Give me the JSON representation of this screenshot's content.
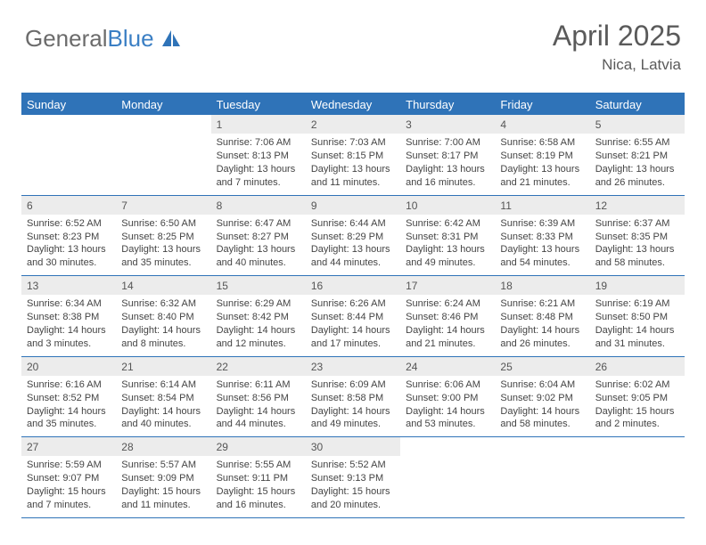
{
  "logo": {
    "gray": "General",
    "blue": "Blue"
  },
  "title": "April 2025",
  "location": "Nica, Latvia",
  "colors": {
    "header_bg": "#2f73b8",
    "header_text": "#ffffff",
    "daynum_bg": "#ececec",
    "text": "#444444",
    "logo_gray": "#6b6b6b",
    "logo_blue": "#3b7fc4"
  },
  "fonts": {
    "title_size": 32,
    "location_size": 17,
    "weekday_size": 13,
    "cell_size": 11
  },
  "weekdays": [
    "Sunday",
    "Monday",
    "Tuesday",
    "Wednesday",
    "Thursday",
    "Friday",
    "Saturday"
  ],
  "weeks": [
    [
      {
        "n": "",
        "sr": "",
        "ss": "",
        "dl": ""
      },
      {
        "n": "",
        "sr": "",
        "ss": "",
        "dl": ""
      },
      {
        "n": "1",
        "sr": "Sunrise: 7:06 AM",
        "ss": "Sunset: 8:13 PM",
        "dl": "Daylight: 13 hours and 7 minutes."
      },
      {
        "n": "2",
        "sr": "Sunrise: 7:03 AM",
        "ss": "Sunset: 8:15 PM",
        "dl": "Daylight: 13 hours and 11 minutes."
      },
      {
        "n": "3",
        "sr": "Sunrise: 7:00 AM",
        "ss": "Sunset: 8:17 PM",
        "dl": "Daylight: 13 hours and 16 minutes."
      },
      {
        "n": "4",
        "sr": "Sunrise: 6:58 AM",
        "ss": "Sunset: 8:19 PM",
        "dl": "Daylight: 13 hours and 21 minutes."
      },
      {
        "n": "5",
        "sr": "Sunrise: 6:55 AM",
        "ss": "Sunset: 8:21 PM",
        "dl": "Daylight: 13 hours and 26 minutes."
      }
    ],
    [
      {
        "n": "6",
        "sr": "Sunrise: 6:52 AM",
        "ss": "Sunset: 8:23 PM",
        "dl": "Daylight: 13 hours and 30 minutes."
      },
      {
        "n": "7",
        "sr": "Sunrise: 6:50 AM",
        "ss": "Sunset: 8:25 PM",
        "dl": "Daylight: 13 hours and 35 minutes."
      },
      {
        "n": "8",
        "sr": "Sunrise: 6:47 AM",
        "ss": "Sunset: 8:27 PM",
        "dl": "Daylight: 13 hours and 40 minutes."
      },
      {
        "n": "9",
        "sr": "Sunrise: 6:44 AM",
        "ss": "Sunset: 8:29 PM",
        "dl": "Daylight: 13 hours and 44 minutes."
      },
      {
        "n": "10",
        "sr": "Sunrise: 6:42 AM",
        "ss": "Sunset: 8:31 PM",
        "dl": "Daylight: 13 hours and 49 minutes."
      },
      {
        "n": "11",
        "sr": "Sunrise: 6:39 AM",
        "ss": "Sunset: 8:33 PM",
        "dl": "Daylight: 13 hours and 54 minutes."
      },
      {
        "n": "12",
        "sr": "Sunrise: 6:37 AM",
        "ss": "Sunset: 8:35 PM",
        "dl": "Daylight: 13 hours and 58 minutes."
      }
    ],
    [
      {
        "n": "13",
        "sr": "Sunrise: 6:34 AM",
        "ss": "Sunset: 8:38 PM",
        "dl": "Daylight: 14 hours and 3 minutes."
      },
      {
        "n": "14",
        "sr": "Sunrise: 6:32 AM",
        "ss": "Sunset: 8:40 PM",
        "dl": "Daylight: 14 hours and 8 minutes."
      },
      {
        "n": "15",
        "sr": "Sunrise: 6:29 AM",
        "ss": "Sunset: 8:42 PM",
        "dl": "Daylight: 14 hours and 12 minutes."
      },
      {
        "n": "16",
        "sr": "Sunrise: 6:26 AM",
        "ss": "Sunset: 8:44 PM",
        "dl": "Daylight: 14 hours and 17 minutes."
      },
      {
        "n": "17",
        "sr": "Sunrise: 6:24 AM",
        "ss": "Sunset: 8:46 PM",
        "dl": "Daylight: 14 hours and 21 minutes."
      },
      {
        "n": "18",
        "sr": "Sunrise: 6:21 AM",
        "ss": "Sunset: 8:48 PM",
        "dl": "Daylight: 14 hours and 26 minutes."
      },
      {
        "n": "19",
        "sr": "Sunrise: 6:19 AM",
        "ss": "Sunset: 8:50 PM",
        "dl": "Daylight: 14 hours and 31 minutes."
      }
    ],
    [
      {
        "n": "20",
        "sr": "Sunrise: 6:16 AM",
        "ss": "Sunset: 8:52 PM",
        "dl": "Daylight: 14 hours and 35 minutes."
      },
      {
        "n": "21",
        "sr": "Sunrise: 6:14 AM",
        "ss": "Sunset: 8:54 PM",
        "dl": "Daylight: 14 hours and 40 minutes."
      },
      {
        "n": "22",
        "sr": "Sunrise: 6:11 AM",
        "ss": "Sunset: 8:56 PM",
        "dl": "Daylight: 14 hours and 44 minutes."
      },
      {
        "n": "23",
        "sr": "Sunrise: 6:09 AM",
        "ss": "Sunset: 8:58 PM",
        "dl": "Daylight: 14 hours and 49 minutes."
      },
      {
        "n": "24",
        "sr": "Sunrise: 6:06 AM",
        "ss": "Sunset: 9:00 PM",
        "dl": "Daylight: 14 hours and 53 minutes."
      },
      {
        "n": "25",
        "sr": "Sunrise: 6:04 AM",
        "ss": "Sunset: 9:02 PM",
        "dl": "Daylight: 14 hours and 58 minutes."
      },
      {
        "n": "26",
        "sr": "Sunrise: 6:02 AM",
        "ss": "Sunset: 9:05 PM",
        "dl": "Daylight: 15 hours and 2 minutes."
      }
    ],
    [
      {
        "n": "27",
        "sr": "Sunrise: 5:59 AM",
        "ss": "Sunset: 9:07 PM",
        "dl": "Daylight: 15 hours and 7 minutes."
      },
      {
        "n": "28",
        "sr": "Sunrise: 5:57 AM",
        "ss": "Sunset: 9:09 PM",
        "dl": "Daylight: 15 hours and 11 minutes."
      },
      {
        "n": "29",
        "sr": "Sunrise: 5:55 AM",
        "ss": "Sunset: 9:11 PM",
        "dl": "Daylight: 15 hours and 16 minutes."
      },
      {
        "n": "30",
        "sr": "Sunrise: 5:52 AM",
        "ss": "Sunset: 9:13 PM",
        "dl": "Daylight: 15 hours and 20 minutes."
      },
      {
        "n": "",
        "sr": "",
        "ss": "",
        "dl": ""
      },
      {
        "n": "",
        "sr": "",
        "ss": "",
        "dl": ""
      },
      {
        "n": "",
        "sr": "",
        "ss": "",
        "dl": ""
      }
    ]
  ]
}
